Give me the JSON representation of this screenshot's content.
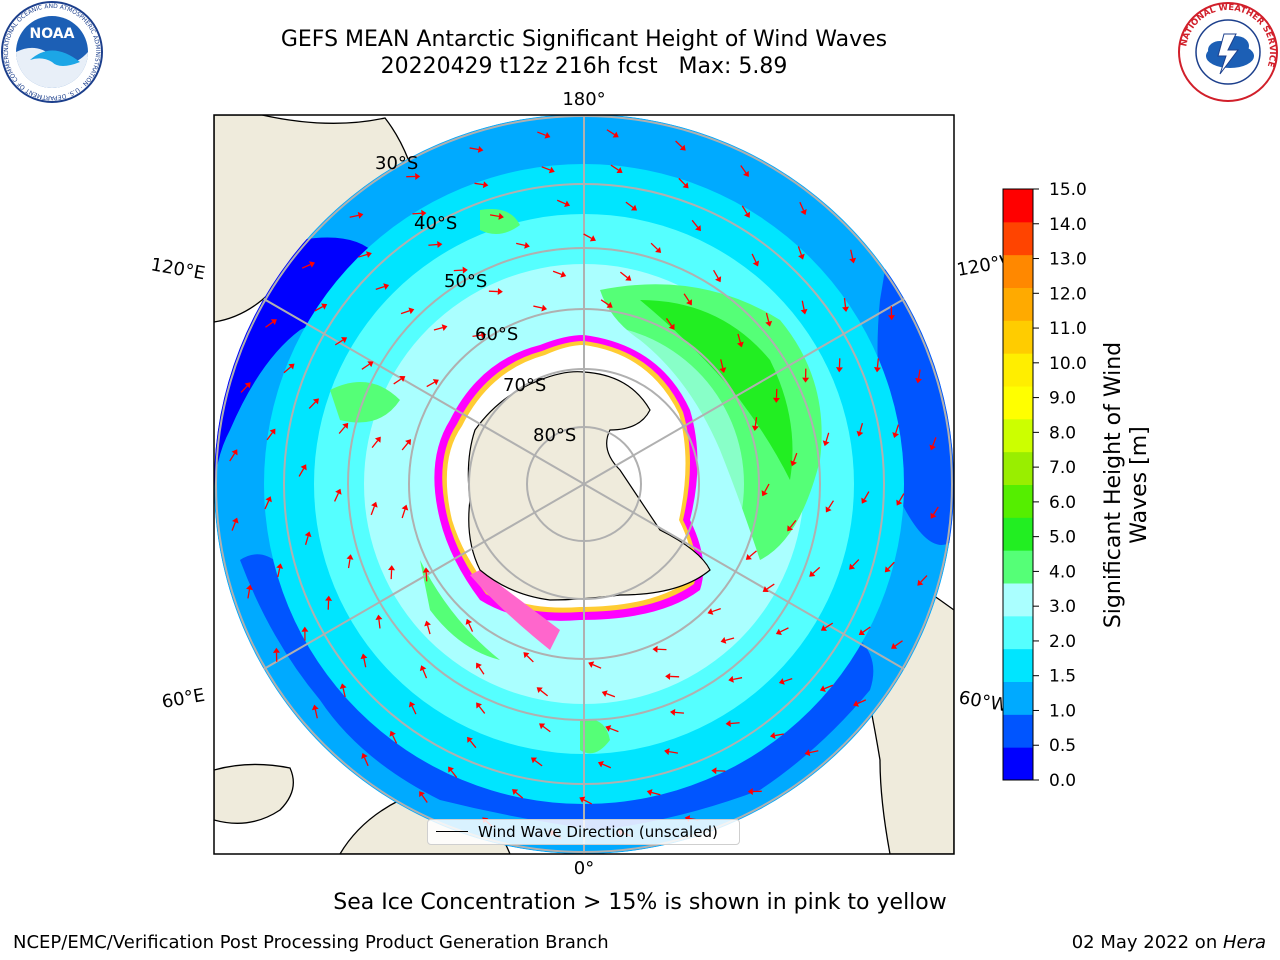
{
  "header": {
    "title_line1": "GEFS MEAN Antarctic Significant Height of Wind Waves",
    "title_line2": "20220429 t12z 216h fcst   Max: 5.89"
  },
  "logos": {
    "noaa_text": "NOAA",
    "noaa_ring_text": "NATIONAL OCEANIC AND ATMOSPHERIC ADMINISTRATION · U.S. DEPARTMENT OF COMMERCE",
    "nws_ring_text": "NATIONAL WEATHER SERVICE"
  },
  "map": {
    "projection": "south-polar-stereographic",
    "lon_labels": {
      "top": "180°",
      "bottom": "0°",
      "left_upper": "120°E",
      "left_lower": "60°E",
      "right_upper": "120°W",
      "right_lower": "60°W"
    },
    "lat_labels": [
      "30°S",
      "40°S",
      "50°S",
      "60°S",
      "70°S",
      "80°S"
    ],
    "sea_ice_colors": [
      "#ff00ff",
      "#ff66cc",
      "#ffcc33",
      "#ffff66"
    ],
    "land_color": "#efebdc"
  },
  "colorbar": {
    "label": "Significant Height of Wind Waves [m]",
    "label_line1": "Significant Height of Wind",
    "label_line2": "Waves [m]",
    "ticks": [
      "0.0",
      "0.5",
      "1.0",
      "1.5",
      "2.0",
      "3.0",
      "4.0",
      "5.0",
      "6.0",
      "7.0",
      "8.0",
      "9.0",
      "10.0",
      "11.0",
      "12.0",
      "13.0",
      "14.0",
      "15.0"
    ],
    "colors": [
      "#0000ff",
      "#0055ff",
      "#00aaff",
      "#00e5ff",
      "#55ffff",
      "#aaffff",
      "#55ff77",
      "#22ee22",
      "#55ee00",
      "#99ee00",
      "#ccff00",
      "#ffff00",
      "#ffee00",
      "#ffcc00",
      "#ffaa00",
      "#ff8800",
      "#ff4400",
      "#ff0000"
    ]
  },
  "legend": {
    "label": "Wind Wave Direction (unscaled)"
  },
  "footer": {
    "note": "Sea Ice Concentration > 15% is shown in pink to yellow",
    "left": "NCEP/EMC/Verification Post Processing Product Generation Branch",
    "date": "02 May 2022 on ",
    "host": "Hera"
  }
}
